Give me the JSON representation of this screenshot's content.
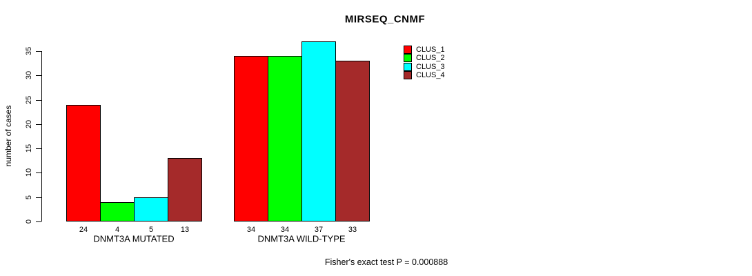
{
  "title": "MIRSEQ_CNMF",
  "footer": "Fisher's exact test P = 0.000888",
  "y_axis": {
    "label": "number of cases",
    "ticks": [
      0,
      5,
      10,
      15,
      20,
      25,
      30,
      35
    ]
  },
  "legend": {
    "items": [
      {
        "label": "CLUS_1",
        "color": "#ff0000"
      },
      {
        "label": "CLUS_2",
        "color": "#00ff00"
      },
      {
        "label": "CLUS_3",
        "color": "#00ffff"
      },
      {
        "label": "CLUS_4",
        "color": "#a52a2a"
      }
    ]
  },
  "chart_data": {
    "type": "bar",
    "title": "MIRSEQ_CNMF",
    "categories": [
      "DNMT3A MUTATED",
      "DNMT3A WILD-TYPE"
    ],
    "series": [
      {
        "name": "CLUS_1",
        "color": "#ff0000",
        "values": [
          24,
          34
        ]
      },
      {
        "name": "CLUS_2",
        "color": "#00ff00",
        "values": [
          4,
          34
        ]
      },
      {
        "name": "CLUS_3",
        "color": "#00ffff",
        "values": [
          5,
          37
        ]
      },
      {
        "name": "CLUS_4",
        "color": "#a52a2a",
        "values": [
          13,
          33
        ]
      }
    ],
    "xlabel": "",
    "ylabel": "number of cases",
    "ylim": [
      0,
      35
    ],
    "bar_labels_shown": true,
    "grid": false,
    "legend_position": "right",
    "annotation": "Fisher's exact test P = 0.000888"
  }
}
